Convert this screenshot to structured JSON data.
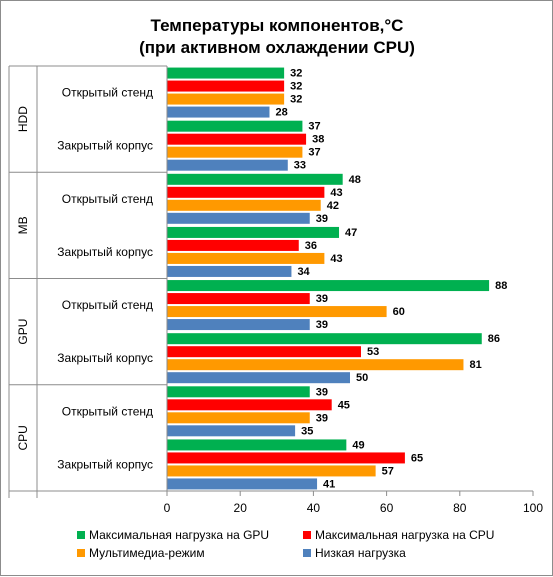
{
  "chart_data": {
    "type": "bar",
    "orientation": "horizontal",
    "title_line1": "Температуры компонентов,°С",
    "title_line2": "(при активном охлаждении CPU)",
    "xlim": [
      0,
      100
    ],
    "xticks": [
      "0",
      "20",
      "40",
      "60",
      "80",
      "100"
    ],
    "grid": false,
    "legend_position": "bottom",
    "series": [
      {
        "name": "Максимальная нагрузка на GPU",
        "color": "#00b050"
      },
      {
        "name": "Максимальная нагрузка на CPU",
        "color": "#ff0000"
      },
      {
        "name": "Мультимедиа-режим",
        "color": "#ff9900"
      },
      {
        "name": "Низкая нагрузка",
        "color": "#4f81bd"
      }
    ],
    "groups": [
      {
        "name": "HDD",
        "rows": [
          {
            "label": "Открытый стенд",
            "values": [
              32,
              32,
              32,
              28
            ]
          },
          {
            "label": "Закрытый корпус",
            "values": [
              37,
              38,
              37,
              33
            ]
          }
        ]
      },
      {
        "name": "MB",
        "rows": [
          {
            "label": "Открытый стенд",
            "values": [
              48,
              43,
              42,
              39
            ]
          },
          {
            "label": "Закрытый корпус",
            "values": [
              47,
              36,
              43,
              34
            ]
          }
        ]
      },
      {
        "name": "GPU",
        "rows": [
          {
            "label": "Открытый стенд",
            "values": [
              88,
              39,
              60,
              39
            ]
          },
          {
            "label": "Закрытый корпус",
            "values": [
              86,
              53,
              81,
              50
            ]
          }
        ]
      },
      {
        "name": "CPU",
        "rows": [
          {
            "label": "Открытый стенд",
            "values": [
              39,
              45,
              39,
              35
            ]
          },
          {
            "label": "Закрытый корпус",
            "values": [
              49,
              65,
              57,
              41
            ]
          }
        ]
      }
    ]
  }
}
